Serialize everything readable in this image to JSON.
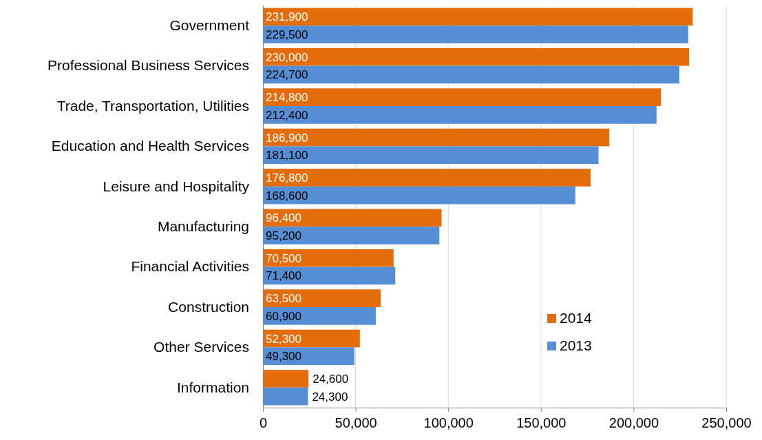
{
  "chart_data": {
    "type": "bar",
    "orientation": "horizontal",
    "categories": [
      "Government",
      "Professional Business Services",
      "Trade, Transportation, Utilities",
      "Education and Health Services",
      "Leisure and Hospitality",
      "Manufacturing",
      "Financial Activities",
      "Construction",
      "Other Services",
      "Information"
    ],
    "series": [
      {
        "name": "2014",
        "color": "#e46c0a",
        "values": [
          231900,
          230000,
          214800,
          186900,
          176800,
          96400,
          70500,
          63500,
          52300,
          24600
        ],
        "value_labels": [
          "231,900",
          "230,000",
          "214,800",
          "186,900",
          "176,800",
          "96,400",
          "70,500",
          "63,500",
          "52,300",
          "24,600"
        ]
      },
      {
        "name": "2013",
        "color": "#558ed5",
        "values": [
          229500,
          224700,
          212400,
          181100,
          168600,
          95200,
          71400,
          60900,
          49300,
          24300
        ],
        "value_labels": [
          "229,500",
          "224,700",
          "212,400",
          "181,100",
          "168,600",
          "95,200",
          "71,400",
          "60,900",
          "49,300",
          "24,300"
        ]
      }
    ],
    "xlim": [
      0,
      250000
    ],
    "xticks": [
      {
        "value": 0,
        "label": "0"
      },
      {
        "value": 50000,
        "label": "50,000"
      },
      {
        "value": 100000,
        "label": "100,000"
      },
      {
        "value": 150000,
        "label": "150,000"
      },
      {
        "value": 200000,
        "label": "200,000"
      },
      {
        "value": 250000,
        "label": "250,000"
      }
    ],
    "grid": "x",
    "legend": "bottom right"
  }
}
